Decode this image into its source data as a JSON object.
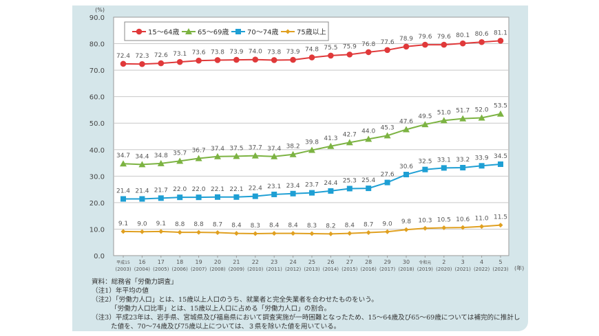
{
  "chart_data": {
    "type": "line",
    "yunit": "(%)",
    "xunit": "(年)",
    "ylim": [
      0,
      90
    ],
    "yticks": [
      "0.0",
      "10.0",
      "20.0",
      "30.0",
      "40.0",
      "50.0",
      "60.0",
      "70.0",
      "80.0",
      "90.0"
    ],
    "grid": true,
    "legend_position": "top-left",
    "categories": [
      {
        "era": "平成15",
        "year": "(2003)"
      },
      {
        "era": "16",
        "year": "(2004)"
      },
      {
        "era": "17",
        "year": "(2005)"
      },
      {
        "era": "18",
        "year": "(2006)"
      },
      {
        "era": "19",
        "year": "(2007)"
      },
      {
        "era": "20",
        "year": "(2008)"
      },
      {
        "era": "21",
        "year": "(2009)"
      },
      {
        "era": "22",
        "year": "(2010)"
      },
      {
        "era": "23",
        "year": "(2011)"
      },
      {
        "era": "24",
        "year": "(2012)"
      },
      {
        "era": "25",
        "year": "(2013)"
      },
      {
        "era": "26",
        "year": "(2014)"
      },
      {
        "era": "27",
        "year": "(2015)"
      },
      {
        "era": "28",
        "year": "(2016)"
      },
      {
        "era": "29",
        "year": "(2017)"
      },
      {
        "era": "30",
        "year": "(2018)"
      },
      {
        "era": "令和元",
        "year": "(2019)"
      },
      {
        "era": "2",
        "year": "(2020)"
      },
      {
        "era": "3",
        "year": "(2021)"
      },
      {
        "era": "4",
        "year": "(2022)"
      },
      {
        "era": "5",
        "year": "(2023)"
      }
    ],
    "series": [
      {
        "name": "15～64歳",
        "color": "#e0393a",
        "marker": "circle",
        "values": [
          72.4,
          72.3,
          72.6,
          73.1,
          73.6,
          73.8,
          73.9,
          74.0,
          73.8,
          73.9,
          74.8,
          75.5,
          75.9,
          76.8,
          77.6,
          78.9,
          79.6,
          79.6,
          80.1,
          80.6,
          81.1
        ]
      },
      {
        "name": "65～69歳",
        "color": "#7cb342",
        "marker": "triangle",
        "values": [
          34.7,
          34.4,
          34.8,
          35.7,
          36.7,
          37.4,
          37.5,
          37.7,
          37.4,
          38.2,
          39.8,
          41.3,
          42.7,
          44.0,
          45.3,
          47.6,
          49.5,
          51.0,
          51.7,
          52.0,
          53.5
        ]
      },
      {
        "name": "70～74歳",
        "color": "#1e9fd4",
        "marker": "square",
        "values": [
          21.4,
          21.4,
          21.7,
          22.0,
          22.0,
          22.1,
          22.1,
          22.4,
          23.1,
          23.4,
          23.7,
          24.4,
          25.3,
          25.4,
          27.6,
          30.6,
          32.5,
          33.1,
          33.2,
          33.9,
          34.5
        ]
      },
      {
        "name": "75歳以上",
        "color": "#e0a020",
        "marker": "diamond",
        "values": [
          9.1,
          9.0,
          9.1,
          8.8,
          8.8,
          8.7,
          8.4,
          8.3,
          8.4,
          8.4,
          8.3,
          8.2,
          8.4,
          8.7,
          9.0,
          9.8,
          10.3,
          10.5,
          10.6,
          11.0,
          11.5
        ]
      }
    ]
  },
  "notes": {
    "source": "資料：総務省「労働力調査」",
    "note1": "（注1）年平均の値",
    "note2a": "（注2）「労働力人口」とは、15歳以上人口のうち、就業者と完全失業者を合わせたものをいう。",
    "note2b": "「労働力人口比率」とは、15歳以上人口に占める「労働力人口」の割合。",
    "note3a": "（注3）平成23年は、岩手県、宮城県及び福島県において調査実施が一時困難となったため、15～64歳及び65～69歳については補完的に推計し",
    "note3b": "た値を、70～74歳及び75歳以上については、３県を除いた値を用いている。"
  }
}
